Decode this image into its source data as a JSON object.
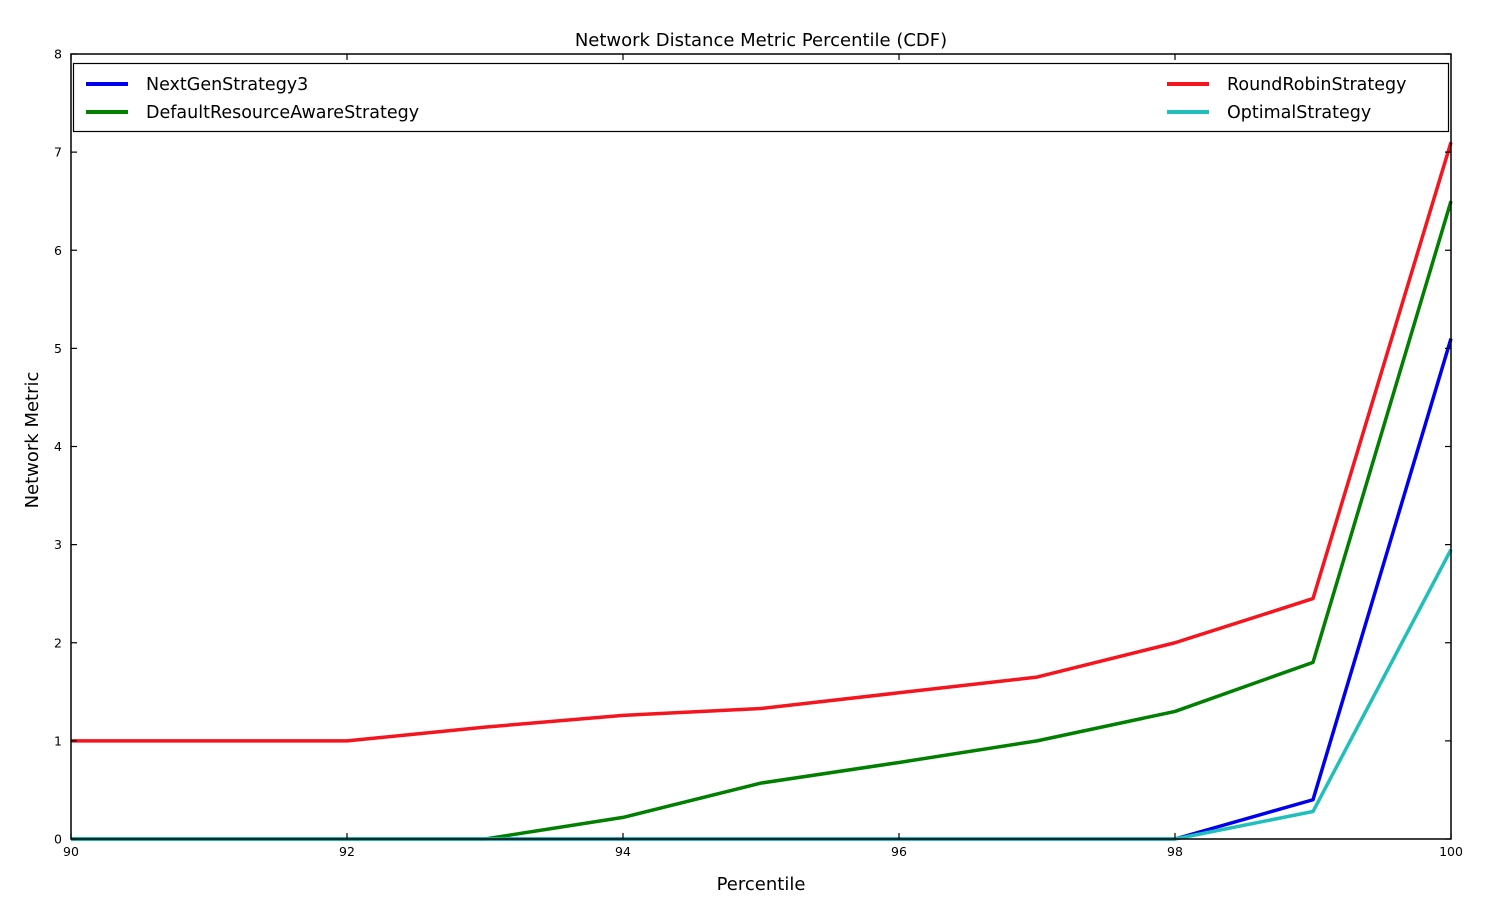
{
  "figure": {
    "title": "Network Distance Metric Percentile (CDF)",
    "xlabel": "Percentile",
    "ylabel": "Network Metric"
  },
  "colors": {
    "background": "#ffffff",
    "frame": "#000000",
    "text": "#000000"
  },
  "chart_data": {
    "type": "line",
    "title": "Network Distance Metric Percentile (CDF)",
    "xlabel": "Percentile",
    "ylabel": "Network Metric",
    "xlim": [
      90,
      100
    ],
    "ylim": [
      0,
      8
    ],
    "xticks": [
      90,
      92,
      94,
      96,
      98,
      100
    ],
    "yticks": [
      0,
      1,
      2,
      3,
      4,
      5,
      6,
      7,
      8
    ],
    "grid": false,
    "legend_position": "top-inside, full axes width, 2 columns",
    "x": [
      90,
      91,
      92,
      93,
      94,
      95,
      96,
      97,
      98,
      99,
      100
    ],
    "series": [
      {
        "name": "NextGenStrategy3",
        "color": "#0000ee",
        "values": [
          0,
          0,
          0,
          0,
          0,
          0,
          0,
          0,
          0,
          0.4,
          5.1
        ]
      },
      {
        "name": "DefaultResourceAwareStrategy",
        "color": "#007f00",
        "values": [
          0,
          0,
          0,
          0,
          0.22,
          0.57,
          0.78,
          1.0,
          1.3,
          1.8,
          6.5
        ]
      },
      {
        "name": "RoundRobinStrategy",
        "color": "#f5151f",
        "values": [
          1.0,
          1.0,
          1.0,
          1.14,
          1.26,
          1.33,
          1.49,
          1.65,
          2.0,
          2.45,
          7.1
        ]
      },
      {
        "name": "OptimalStrategy",
        "color": "#20bfbc",
        "values": [
          0,
          0,
          0,
          0,
          0,
          0,
          0,
          0,
          0,
          0.28,
          2.95
        ]
      }
    ],
    "legend_columns": [
      [
        "NextGenStrategy3",
        "DefaultResourceAwareStrategy"
      ],
      [
        "RoundRobinStrategy",
        "OptimalStrategy"
      ]
    ]
  }
}
